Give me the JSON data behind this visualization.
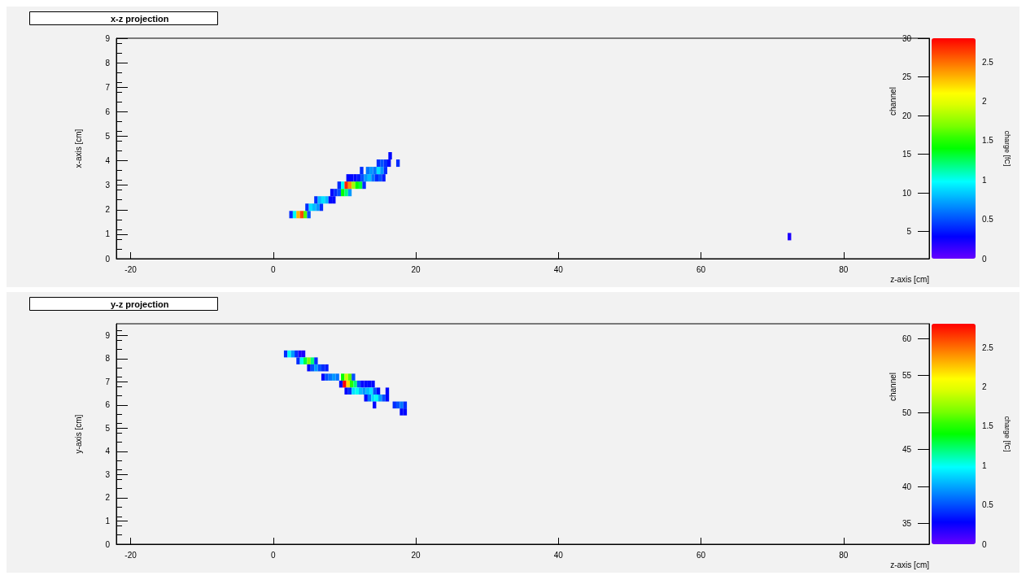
{
  "chart_data": [
    {
      "type": "scatter",
      "title": "x-z projection",
      "xlabel": "z-axis [cm]",
      "ylabel": "x-axis [cm]",
      "y2label": "channel",
      "clabel": "charge [fC]",
      "marker": "square",
      "xlim": [
        -22,
        92
      ],
      "xticks": [
        -20,
        0,
        20,
        40,
        60,
        80
      ],
      "ylim": [
        0,
        9
      ],
      "yticks": [
        0,
        1,
        2,
        3,
        4,
        5,
        6,
        7,
        8,
        9
      ],
      "y2lim": [
        1.5,
        30
      ],
      "y2ticks": [
        5,
        10,
        15,
        20,
        25,
        30
      ],
      "clim": [
        0,
        2.8
      ],
      "cticks": [
        0,
        0.5,
        1,
        1.5,
        2,
        2.5
      ],
      "series": [
        {
          "x": [
            2.5,
            3,
            3.5,
            4,
            4.5,
            5,
            4.75,
            5.25,
            5.75,
            6.25,
            6.75,
            6,
            6.5,
            7,
            7.5,
            8,
            8.5,
            8.25,
            8.75,
            9.25,
            9.75,
            10.25,
            10.75,
            9.25,
            9.75,
            10.25,
            10.75,
            11.25,
            11.75,
            12.25,
            12.75,
            10.5,
            11,
            11.5,
            12,
            12.5,
            13,
            13.5,
            14,
            14.5,
            15,
            15.5,
            12.4,
            13.25,
            13.75,
            14.25,
            14.75,
            15.25,
            15.75,
            14.75,
            15.25,
            15.75,
            16.25,
            17.5,
            16.4,
            72.4
          ],
          "values": [
            1.8,
            1.8,
            1.8,
            1.8,
            1.8,
            1.8,
            2.1,
            2.1,
            2.1,
            2.1,
            2.1,
            2.4,
            2.4,
            2.4,
            2.4,
            2.4,
            2.4,
            2.7,
            2.7,
            2.7,
            2.7,
            2.7,
            2.7,
            3.0,
            3.0,
            3.0,
            3.0,
            3.0,
            3.0,
            3.0,
            3.0,
            3.3,
            3.3,
            3.3,
            3.3,
            3.3,
            3.3,
            3.3,
            3.3,
            3.3,
            3.3,
            3.3,
            3.6,
            3.6,
            3.6,
            3.6,
            3.6,
            3.6,
            3.6,
            3.9,
            3.9,
            3.9,
            3.9,
            3.9,
            4.2,
            0.9
          ],
          "cvalues": [
            0.4,
            1.0,
            2.3,
            2.6,
            1.6,
            0.5,
            0.4,
            0.9,
            0.8,
            0.7,
            0.4,
            0.4,
            0.8,
            0.9,
            0.8,
            0.3,
            0.3,
            0.3,
            0.4,
            0.5,
            1.4,
            1.2,
            0.7,
            0.4,
            1.0,
            2.7,
            2.4,
            1.8,
            1.4,
            1.3,
            0.4,
            0.3,
            0.3,
            0.3,
            0.35,
            0.5,
            0.7,
            0.8,
            0.6,
            0.4,
            0.5,
            0.35,
            0.4,
            0.6,
            0.7,
            0.6,
            0.9,
            0.7,
            0.4,
            0.4,
            0.5,
            0.4,
            0.3,
            0.4,
            0.3,
            0.2
          ]
        }
      ]
    },
    {
      "type": "scatter",
      "title": "y-z projection",
      "xlabel": "z-axis [cm]",
      "ylabel": "y-axis [cm]",
      "y2label": "channel",
      "clabel": "charge [fC]",
      "marker": "square",
      "xlim": [
        -22,
        92
      ],
      "xticks": [
        -20,
        0,
        20,
        40,
        60,
        80
      ],
      "ylim": [
        0,
        9.5
      ],
      "yticks": [
        0,
        1,
        2,
        3,
        4,
        5,
        6,
        7,
        8,
        9
      ],
      "y2lim": [
        32.2,
        62
      ],
      "y2ticks": [
        35,
        40,
        45,
        50,
        55,
        60
      ],
      "clim": [
        0,
        2.8
      ],
      "cticks": [
        0,
        0.5,
        1,
        1.5,
        2,
        2.5
      ],
      "series": [
        {
          "x": [
            1.75,
            2.25,
            2.75,
            3.25,
            3.75,
            4.25,
            3.5,
            4,
            4.5,
            5,
            5.5,
            6,
            5,
            5.5,
            6,
            6.5,
            7,
            7.5,
            7,
            7.5,
            8,
            8.5,
            9,
            9.75,
            10.25,
            10.75,
            11.25,
            9.5,
            10,
            10.5,
            11,
            11.5,
            12,
            12.5,
            13,
            13.5,
            14,
            10.25,
            10.75,
            11.25,
            11.75,
            12.25,
            12.75,
            13.25,
            13.75,
            14.25,
            14.75,
            16,
            13,
            13.5,
            14,
            14.5,
            15,
            15.5,
            16,
            14.2,
            17,
            17.5,
            18,
            18.5,
            18,
            18.5
          ],
          "values": [
            8.2,
            8.2,
            8.2,
            8.2,
            8.2,
            8.2,
            7.9,
            7.9,
            7.9,
            7.9,
            7.9,
            7.9,
            7.6,
            7.6,
            7.6,
            7.6,
            7.6,
            7.6,
            7.2,
            7.2,
            7.2,
            7.2,
            7.2,
            7.2,
            7.2,
            7.2,
            7.2,
            6.9,
            6.9,
            6.9,
            6.9,
            6.9,
            6.9,
            6.9,
            6.9,
            6.9,
            6.9,
            6.6,
            6.6,
            6.6,
            6.6,
            6.6,
            6.6,
            6.6,
            6.6,
            6.6,
            6.6,
            6.6,
            6.3,
            6.3,
            6.3,
            6.3,
            6.3,
            6.3,
            6.3,
            6.0,
            6.0,
            6.0,
            6.0,
            6.0,
            5.7,
            5.7
          ],
          "cvalues": [
            0.4,
            1.0,
            0.7,
            0.4,
            0.2,
            0.2,
            0.4,
            1.0,
            1.3,
            1.7,
            1.2,
            0.4,
            0.3,
            0.5,
            0.7,
            0.5,
            0.4,
            0.35,
            0.3,
            0.5,
            0.6,
            0.7,
            0.6,
            1.4,
            1.9,
            1.6,
            0.5,
            0.3,
            2.8,
            2.2,
            1.5,
            1.2,
            0.5,
            0.3,
            0.3,
            0.3,
            0.3,
            0.3,
            0.4,
            0.9,
            1.0,
            0.8,
            0.7,
            0.8,
            0.9,
            0.5,
            0.3,
            0.3,
            0.3,
            0.6,
            0.9,
            1.0,
            0.7,
            0.5,
            0.3,
            0.3,
            0.4,
            0.5,
            0.6,
            0.4,
            0.3,
            0.3
          ]
        }
      ]
    }
  ]
}
